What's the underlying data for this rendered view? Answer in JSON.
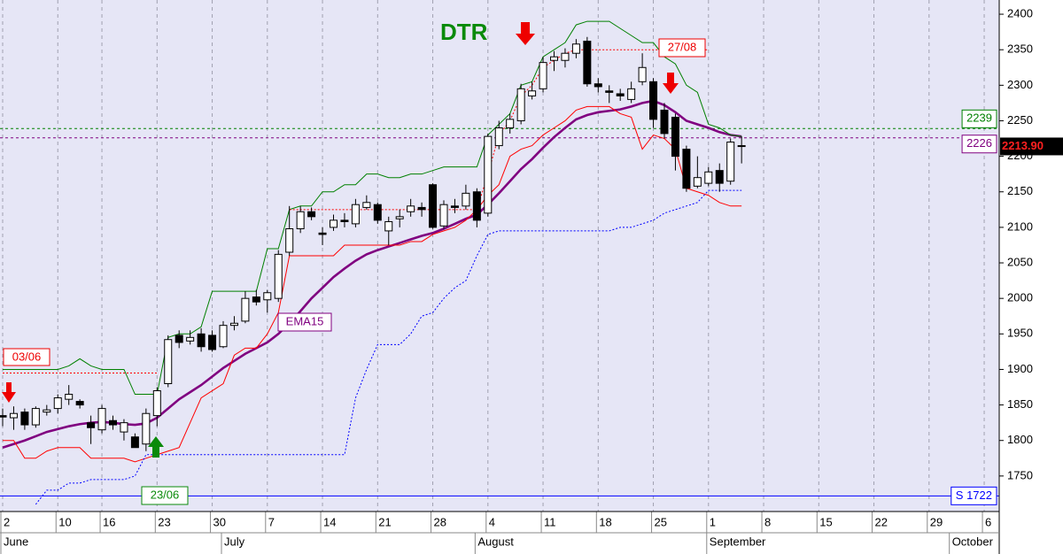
{
  "chart_data": {
    "type": "candlestick",
    "background": "#e6e6f6",
    "candle_colors": {
      "up": "#ffffff",
      "down": "#000000"
    },
    "ylim": [
      1700,
      2420
    ],
    "yticks": [
      1750,
      1800,
      1850,
      1900,
      1950,
      2000,
      2050,
      2100,
      2150,
      2200,
      2250,
      2300,
      2350,
      2400
    ],
    "categories": [
      "2",
      null,
      null,
      null,
      null,
      "10",
      null,
      null,
      null,
      "16",
      null,
      null,
      null,
      null,
      "23",
      null,
      null,
      null,
      null,
      "30",
      null,
      null,
      null,
      null,
      "7",
      null,
      null,
      null,
      null,
      "14",
      null,
      null,
      null,
      null,
      "21",
      null,
      null,
      null,
      null,
      "28",
      null,
      null,
      null,
      null,
      "4",
      null,
      null,
      null,
      null,
      "11",
      null,
      null,
      null,
      null,
      "18",
      null,
      null,
      null,
      null,
      "25",
      null,
      null,
      null,
      null,
      "1",
      null,
      null,
      null,
      null,
      "8",
      null,
      null,
      null,
      null,
      "15",
      null,
      null,
      null,
      null,
      "22",
      null,
      null,
      null,
      null,
      "29",
      null,
      null,
      null,
      null,
      "6",
      null
    ],
    "months": [
      "June",
      null,
      null,
      null,
      null,
      null,
      null,
      null,
      null,
      null,
      null,
      null,
      null,
      null,
      null,
      null,
      null,
      null,
      null,
      null,
      "July",
      null,
      null,
      null,
      null,
      null,
      null,
      null,
      null,
      null,
      null,
      null,
      null,
      null,
      null,
      null,
      null,
      null,
      null,
      null,
      null,
      null,
      null,
      "August",
      null,
      null,
      null,
      null,
      null,
      null,
      null,
      null,
      null,
      null,
      null,
      null,
      null,
      null,
      null,
      null,
      null,
      null,
      null,
      null,
      "September",
      null,
      null,
      null,
      null,
      null,
      null,
      null,
      null,
      null,
      null,
      null,
      null,
      null,
      null,
      null,
      null,
      null,
      null,
      null,
      null,
      null,
      "October",
      null,
      null,
      null,
      null
    ],
    "open": [
      1835,
      1832,
      1840,
      1822,
      1840,
      1845,
      1858,
      1855,
      1825,
      1815,
      1828,
      1812,
      1805,
      1795,
      1835,
      1880,
      1948,
      1940,
      1950,
      1948,
      1932,
      1962,
      1968,
      2002,
      1998,
      2000,
      2065,
      2098,
      2122,
      2092,
      2100,
      2110,
      2105,
      2128,
      2132,
      2095,
      2112,
      2122,
      2128,
      2160,
      2102,
      2130,
      2130,
      2150,
      2120,
      2215,
      2240,
      2250,
      2285,
      2295,
      2335,
      2335,
      2345,
      2362,
      2302,
      2292,
      2288,
      2280,
      2305,
      2305,
      2265,
      2255,
      2210,
      2158,
      2162,
      2180,
      2165,
      2215,
      null,
      null,
      null,
      null,
      null,
      null,
      null,
      null,
      null,
      null,
      null,
      null,
      null,
      null,
      null,
      null,
      null,
      null,
      null,
      null,
      null,
      null,
      null
    ],
    "high": [
      1845,
      1848,
      1845,
      1848,
      1850,
      1865,
      1878,
      1858,
      1835,
      1850,
      1835,
      1830,
      1810,
      1845,
      1875,
      1948,
      1955,
      1955,
      1958,
      1955,
      1968,
      1975,
      2010,
      2012,
      2012,
      2068,
      2130,
      2130,
      2128,
      2100,
      2118,
      2120,
      2140,
      2145,
      2135,
      2115,
      2125,
      2140,
      2135,
      2162,
      2138,
      2140,
      2160,
      2155,
      2232,
      2250,
      2260,
      2302,
      2305,
      2340,
      2348,
      2352,
      2365,
      2368,
      2310,
      2300,
      2295,
      2305,
      2345,
      2310,
      2275,
      2260,
      2215,
      2200,
      2185,
      2190,
      2225,
      2228,
      null,
      null,
      null,
      null,
      null,
      null,
      null,
      null,
      null,
      null,
      null,
      null,
      null,
      null,
      null,
      null,
      null,
      null,
      null,
      null,
      null,
      null,
      null
    ],
    "low": [
      1820,
      1815,
      1815,
      1818,
      1835,
      1838,
      1850,
      1845,
      1795,
      1810,
      1815,
      1800,
      1790,
      1785,
      1820,
      1875,
      1930,
      1935,
      1925,
      1925,
      1930,
      1955,
      1965,
      1990,
      1980,
      1995,
      2060,
      2092,
      2110,
      2075,
      2095,
      2100,
      2100,
      2125,
      2105,
      2075,
      2100,
      2115,
      2115,
      2098,
      2098,
      2120,
      2125,
      2100,
      2115,
      2210,
      2232,
      2245,
      2280,
      2290,
      2320,
      2325,
      2338,
      2298,
      2290,
      2275,
      2278,
      2275,
      2300,
      2240,
      2225,
      2180,
      2150,
      2155,
      2158,
      2150,
      2160,
      2190,
      null,
      null,
      null,
      null,
      null,
      null,
      null,
      null,
      null,
      null,
      null,
      null,
      null,
      null,
      null,
      null,
      null,
      null,
      null,
      null,
      null,
      null,
      null
    ],
    "close": [
      1833,
      1838,
      1822,
      1845,
      1843,
      1860,
      1865,
      1850,
      1818,
      1845,
      1822,
      1825,
      1790,
      1838,
      1870,
      1942,
      1938,
      1945,
      1932,
      1928,
      1962,
      1965,
      2000,
      1995,
      2008,
      2062,
      2098,
      2122,
      2115,
      2090,
      2110,
      2108,
      2132,
      2135,
      2110,
      2108,
      2115,
      2130,
      2125,
      2100,
      2132,
      2128,
      2148,
      2110,
      2228,
      2240,
      2252,
      2295,
      2292,
      2332,
      2340,
      2345,
      2358,
      2302,
      2298,
      2290,
      2285,
      2295,
      2325,
      2252,
      2232,
      2200,
      2155,
      2170,
      2178,
      2162,
      2220,
      2214,
      null,
      null,
      null,
      null,
      null,
      null,
      null,
      null,
      null,
      null,
      null,
      null,
      null,
      null,
      null,
      null,
      null,
      null,
      null,
      null,
      null,
      null,
      null
    ],
    "series": [
      {
        "name": "EMA15",
        "color": "#800080",
        "style": "thick",
        "values": [
          1790,
          1795,
          1800,
          1806,
          1812,
          1816,
          1820,
          1823,
          1825,
          1826,
          1825,
          1823,
          1822,
          1824,
          1832,
          1845,
          1858,
          1868,
          1878,
          1890,
          1902,
          1912,
          1922,
          1930,
          1938,
          1950,
          1965,
          1982,
          2000,
          2015,
          2030,
          2042,
          2053,
          2062,
          2068,
          2073,
          2078,
          2083,
          2088,
          2092,
          2098,
          2105,
          2112,
          2118,
          2132,
          2148,
          2165,
          2182,
          2196,
          2212,
          2227,
          2240,
          2252,
          2258,
          2262,
          2264,
          2266,
          2270,
          2275,
          2278,
          2272,
          2262,
          2250,
          2245,
          2240,
          2234,
          2230,
          2228,
          null,
          null,
          null,
          null,
          null,
          null,
          null,
          null,
          null,
          null,
          null,
          null,
          null,
          null,
          null,
          null,
          null,
          null,
          null,
          null,
          null,
          null,
          null
        ]
      },
      {
        "color": "#008000",
        "style": "solid",
        "values": [
          1900,
          1900,
          1900,
          1900,
          1900,
          1900,
          1905,
          1915,
          1905,
          1900,
          1900,
          1900,
          1865,
          1865,
          1865,
          1945,
          1950,
          1950,
          1960,
          2010,
          2010,
          2010,
          2010,
          2010,
          2070,
          2070,
          2125,
          2130,
          2130,
          2150,
          2150,
          2160,
          2160,
          2175,
          2175,
          2170,
          2170,
          2175,
          2175,
          2180,
          2185,
          2185,
          2185,
          2185,
          2230,
          2245,
          2260,
          2300,
          2305,
          2340,
          2350,
          2360,
          2385,
          2390,
          2390,
          2390,
          2380,
          2370,
          2360,
          2360,
          2340,
          2330,
          2300,
          2290,
          2245,
          2240,
          2230,
          2228,
          null,
          null,
          null,
          null,
          null,
          null,
          null,
          null,
          null,
          null,
          null,
          null,
          null,
          null,
          null,
          null,
          null,
          null,
          null,
          null,
          null,
          null,
          null
        ]
      },
      {
        "color": "#ff0000",
        "style": "solid",
        "values": [
          1800,
          1800,
          1775,
          1775,
          1785,
          1790,
          1790,
          1790,
          1775,
          1775,
          1775,
          1775,
          1770,
          1775,
          1780,
          1785,
          1790,
          1825,
          1860,
          1870,
          1880,
          1920,
          1930,
          1930,
          1950,
          1980,
          2060,
          2060,
          2060,
          2060,
          2060,
          2075,
          2075,
          2075,
          2075,
          2075,
          2075,
          2080,
          2080,
          2090,
          2095,
          2100,
          2110,
          2125,
          2145,
          2160,
          2200,
          2210,
          2215,
          2230,
          2240,
          2250,
          2265,
          2270,
          2270,
          2270,
          2260,
          2255,
          2210,
          2230,
          2225,
          2210,
          2155,
          2150,
          2145,
          2135,
          2130,
          2130,
          null,
          null,
          null,
          null,
          null,
          null,
          null,
          null,
          null,
          null,
          null,
          null,
          null,
          null,
          null,
          null,
          null,
          null,
          null,
          null,
          null,
          null,
          null
        ]
      },
      {
        "color": "#0000ff",
        "style": "dotted",
        "values": [
          null,
          null,
          null,
          1710,
          1730,
          1730,
          1740,
          1740,
          1745,
          1745,
          1745,
          1745,
          1750,
          1780,
          1780,
          1780,
          1780,
          1780,
          1780,
          1780,
          1780,
          1780,
          1780,
          1780,
          1780,
          1780,
          1780,
          1780,
          1780,
          1780,
          1780,
          1780,
          1860,
          1900,
          1935,
          1935,
          1935,
          1950,
          1975,
          1980,
          2000,
          2015,
          2025,
          2060,
          2090,
          2095,
          2095,
          2095,
          2095,
          2095,
          2095,
          2095,
          2095,
          2095,
          2095,
          2095,
          2100,
          2100,
          2105,
          2110,
          2120,
          2125,
          2130,
          2135,
          2152,
          2152,
          2152,
          2152,
          null,
          null,
          null,
          null,
          null,
          null,
          null,
          null,
          null,
          null,
          null,
          null,
          null,
          null,
          null,
          null,
          null,
          null,
          null,
          null,
          null,
          null,
          null
        ]
      },
      {
        "color": "#ff0000",
        "style": "dotted",
        "values": [
          1895,
          1895,
          1895,
          1895,
          1895,
          1895,
          1895,
          1895,
          1895,
          1895,
          1895,
          1895,
          1895,
          1895,
          1895,
          null,
          null,
          null,
          null,
          null,
          null,
          null,
          null,
          null,
          null,
          null,
          2125,
          2125,
          2125,
          2125,
          2125,
          2125,
          2125,
          2125,
          2125,
          2125,
          2125,
          2125,
          2125,
          2125,
          2125,
          2125,
          2125,
          2125,
          2175,
          2230,
          2250,
          2285,
          2300,
          2325,
          2335,
          2345,
          2350,
          2350,
          2350,
          2350,
          2350,
          2350,
          2350,
          2350,
          2350,
          2350,
          2350,
          2350,
          2350,
          null,
          null,
          null,
          null,
          null,
          null,
          null,
          null,
          null,
          null,
          null,
          null,
          null,
          null,
          null,
          null,
          null,
          null,
          null,
          null,
          null,
          null,
          null,
          null,
          null,
          null
        ]
      }
    ],
    "hlines": [
      {
        "value": 2239,
        "color": "#008000",
        "dash": true
      },
      {
        "value": 2226,
        "color": "#800080",
        "dash": true
      },
      {
        "value": 1722,
        "label": "S 1722",
        "color": "#0000ff",
        "dash": false
      }
    ],
    "last_price": {
      "value": 2213.9,
      "label": "2213.90"
    },
    "annotations": [
      "DTR",
      "03/06",
      "27/08",
      "23/06"
    ]
  }
}
